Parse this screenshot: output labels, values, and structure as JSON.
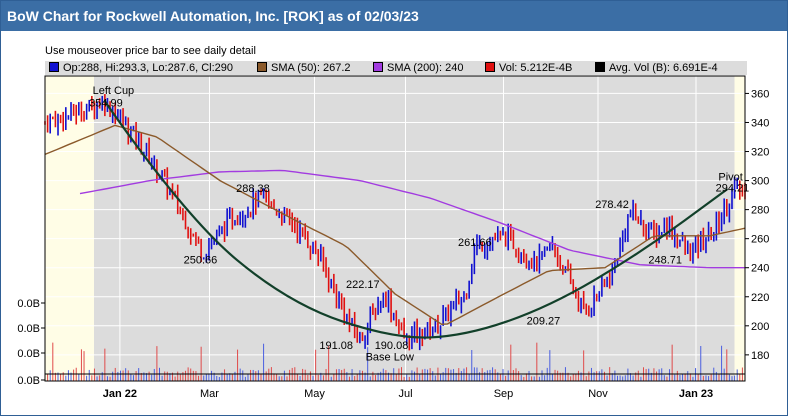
{
  "header": {
    "title": "BoW Chart for Rockwell Automation, Inc. [ROK] as of 02/03/23"
  },
  "hint": "Use mouseover price bar to see daily detail",
  "legend": {
    "ohlc": "Op:288, Hi:293.3, Lo:287.6, Cl:290",
    "sma50": "SMA (50): 267.2",
    "sma200": "SMA (200): 240",
    "vol": "Vol: 5.212E-4B",
    "avgvol": "Avg. Vol (B): 6.691E-4"
  },
  "colors": {
    "sma50": "#8b5a2b",
    "sma200": "#a23be0",
    "up_bar": "#1010d0",
    "down_bar": "#e01010",
    "cup": "#12402a",
    "plot_bg": "#dcdcdc",
    "highlight_bg": "#fffde6"
  },
  "chart_data": {
    "type": "ohlc-cup-with-handle",
    "x_tick_labels": [
      "Jan 22",
      "Mar",
      "May",
      "Jul",
      "Sep",
      "Nov",
      "Jan 23"
    ],
    "y_ticks": [
      180,
      200,
      220,
      240,
      260,
      280,
      300,
      320,
      340,
      360
    ],
    "ylim": [
      162,
      372
    ],
    "volume_axis_labels": [
      "0.0B",
      "0.0B",
      "0.0B",
      "0.0B"
    ],
    "grid": true,
    "annotations": [
      {
        "text": "Left Cup",
        "value": 354.99
      },
      {
        "text": "354.99",
        "value": 354.99
      },
      {
        "text": "250.66",
        "value": 250.66
      },
      {
        "text": "288.38",
        "value": 288.38
      },
      {
        "text": "191.08",
        "value": 191.08
      },
      {
        "text": "222.17",
        "value": 222.17
      },
      {
        "text": "190.08",
        "value": 190.08
      },
      {
        "text": "Base Low",
        "value": 190.08
      },
      {
        "text": "261.66",
        "value": 261.66
      },
      {
        "text": "209.27",
        "value": 209.27
      },
      {
        "text": "278.42",
        "value": 278.42
      },
      {
        "text": "248.71",
        "value": 248.71
      },
      {
        "text": "Pivot",
        "value": 294.21
      },
      {
        "text": "294.21",
        "value": 294.21
      }
    ],
    "price_anchors": [
      {
        "t": 0,
        "close": 340
      },
      {
        "t": 0.05,
        "close": 348
      },
      {
        "t": 0.085,
        "close": 354.99
      },
      {
        "t": 0.13,
        "close": 330
      },
      {
        "t": 0.17,
        "close": 300
      },
      {
        "t": 0.225,
        "close": 250.66
      },
      {
        "t": 0.27,
        "close": 275
      },
      {
        "t": 0.31,
        "close": 288.38
      },
      {
        "t": 0.36,
        "close": 268
      },
      {
        "t": 0.395,
        "close": 245
      },
      {
        "t": 0.43,
        "close": 205
      },
      {
        "t": 0.45,
        "close": 191.08
      },
      {
        "t": 0.485,
        "close": 222.17
      },
      {
        "t": 0.515,
        "close": 190.08
      },
      {
        "t": 0.56,
        "close": 200
      },
      {
        "t": 0.6,
        "close": 222
      },
      {
        "t": 0.615,
        "close": 255
      },
      {
        "t": 0.66,
        "close": 261.66
      },
      {
        "t": 0.7,
        "close": 242
      },
      {
        "t": 0.725,
        "close": 255
      },
      {
        "t": 0.77,
        "close": 209.27
      },
      {
        "t": 0.81,
        "close": 235
      },
      {
        "t": 0.835,
        "close": 278.42
      },
      {
        "t": 0.87,
        "close": 262
      },
      {
        "t": 0.89,
        "close": 270
      },
      {
        "t": 0.92,
        "close": 248.71
      },
      {
        "t": 0.955,
        "close": 265
      },
      {
        "t": 0.985,
        "close": 294.21
      },
      {
        "t": 1.0,
        "close": 290
      }
    ],
    "sma50": [
      {
        "t": 0,
        "v": 318
      },
      {
        "t": 0.1,
        "v": 338
      },
      {
        "t": 0.16,
        "v": 330
      },
      {
        "t": 0.25,
        "v": 300
      },
      {
        "t": 0.36,
        "v": 272
      },
      {
        "t": 0.43,
        "v": 255
      },
      {
        "t": 0.5,
        "v": 222
      },
      {
        "t": 0.57,
        "v": 200
      },
      {
        "t": 0.64,
        "v": 218
      },
      {
        "t": 0.72,
        "v": 238
      },
      {
        "t": 0.8,
        "v": 240
      },
      {
        "t": 0.87,
        "v": 262
      },
      {
        "t": 0.95,
        "v": 262
      },
      {
        "t": 1.0,
        "v": 267.2
      }
    ],
    "sma200": [
      {
        "t": 0.05,
        "v": 291
      },
      {
        "t": 0.15,
        "v": 300
      },
      {
        "t": 0.25,
        "v": 306
      },
      {
        "t": 0.34,
        "v": 307
      },
      {
        "t": 0.45,
        "v": 300
      },
      {
        "t": 0.55,
        "v": 288
      },
      {
        "t": 0.65,
        "v": 271
      },
      {
        "t": 0.75,
        "v": 252
      },
      {
        "t": 0.85,
        "v": 242
      },
      {
        "t": 0.95,
        "v": 240
      },
      {
        "t": 1.0,
        "v": 240
      }
    ],
    "cup_curve": [
      {
        "t": 0.085,
        "v": 354.99
      },
      {
        "t": 0.2,
        "v": 275
      },
      {
        "t": 0.35,
        "v": 215
      },
      {
        "t": 0.5,
        "v": 191
      },
      {
        "t": 0.6,
        "v": 193
      },
      {
        "t": 0.72,
        "v": 213
      },
      {
        "t": 0.85,
        "v": 250
      },
      {
        "t": 0.975,
        "v": 294.21
      }
    ]
  }
}
